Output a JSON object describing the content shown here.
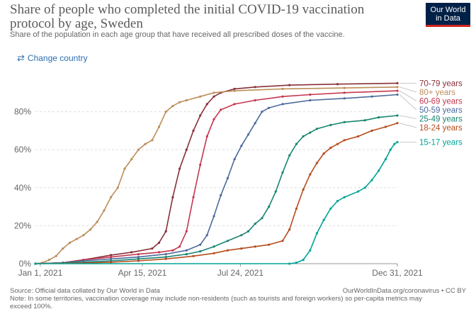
{
  "header": {
    "title": "Share of people who completed the initial COVID-19 vaccination protocol by age, Sweden",
    "subtitle": "Share of the population in each age group that have received all prescribed doses of the vaccine.",
    "logo_line1": "Our World",
    "logo_line2": "in Data"
  },
  "controls": {
    "change_country": "Change country"
  },
  "footer": {
    "source": "Source: Official data collated by Our World in Data",
    "license": "OurWorldInData.org/coronavirus • CC BY",
    "note": "Note: In some territories, vaccination coverage may include non-residents (such as tourists and foreign workers) so per-capita metrics may exceed 100%."
  },
  "chart_data": {
    "type": "line",
    "y_ticks": [
      "0%",
      "20%",
      "40%",
      "60%",
      "80%"
    ],
    "ylim": [
      0,
      100
    ],
    "x_ticks": [
      {
        "label": "Jan 1, 2021",
        "date": "2021-01-01"
      },
      {
        "label": "Apr 15, 2021",
        "date": "2021-04-15"
      },
      {
        "label": "Jul 24, 2021",
        "date": "2021-07-24"
      },
      {
        "label": "Dec 31, 2021",
        "date": "2021-12-31"
      }
    ],
    "xlim": [
      "2020-12-27",
      "2021-12-31"
    ],
    "series": [
      {
        "name": "70-79 years",
        "color": "#883039",
        "points": [
          [
            "2020-12-27",
            0
          ],
          [
            "2021-01-24",
            0.5
          ],
          [
            "2021-02-14",
            2
          ],
          [
            "2021-03-14",
            4.5
          ],
          [
            "2021-04-04",
            6
          ],
          [
            "2021-04-25",
            8
          ],
          [
            "2021-05-02",
            11
          ],
          [
            "2021-05-09",
            17
          ],
          [
            "2021-05-16",
            35
          ],
          [
            "2021-05-23",
            50
          ],
          [
            "2021-05-30",
            60
          ],
          [
            "2021-06-06",
            70
          ],
          [
            "2021-06-13",
            78
          ],
          [
            "2021-06-20",
            84
          ],
          [
            "2021-06-27",
            88
          ],
          [
            "2021-07-04",
            90
          ],
          [
            "2021-07-18",
            92
          ],
          [
            "2021-08-08",
            93
          ],
          [
            "2021-09-12",
            94
          ],
          [
            "2021-10-31",
            94.5
          ],
          [
            "2021-12-31",
            95
          ]
        ]
      },
      {
        "name": "80+ years",
        "color": "#bc8e5a",
        "points": [
          [
            "2020-12-27",
            0
          ],
          [
            "2021-01-03",
            0.5
          ],
          [
            "2021-01-10",
            2
          ],
          [
            "2021-01-17",
            4
          ],
          [
            "2021-01-24",
            8
          ],
          [
            "2021-01-31",
            11
          ],
          [
            "2021-02-07",
            13
          ],
          [
            "2021-02-14",
            15
          ],
          [
            "2021-02-21",
            18
          ],
          [
            "2021-02-28",
            22
          ],
          [
            "2021-03-07",
            28
          ],
          [
            "2021-03-14",
            35
          ],
          [
            "2021-03-21",
            40
          ],
          [
            "2021-03-28",
            50
          ],
          [
            "2021-04-04",
            55
          ],
          [
            "2021-04-11",
            60
          ],
          [
            "2021-04-18",
            63
          ],
          [
            "2021-04-25",
            65
          ],
          [
            "2021-05-02",
            72
          ],
          [
            "2021-05-09",
            80
          ],
          [
            "2021-05-16",
            83
          ],
          [
            "2021-05-23",
            85
          ],
          [
            "2021-05-30",
            86
          ],
          [
            "2021-06-13",
            88
          ],
          [
            "2021-06-27",
            90
          ],
          [
            "2021-07-18",
            91
          ],
          [
            "2021-09-05",
            92
          ],
          [
            "2021-11-07",
            92.5
          ],
          [
            "2021-12-31",
            93
          ]
        ]
      },
      {
        "name": "60-69 years",
        "color": "#c4374f",
        "points": [
          [
            "2020-12-27",
            0
          ],
          [
            "2021-01-24",
            0.5
          ],
          [
            "2021-02-14",
            2
          ],
          [
            "2021-03-14",
            3.5
          ],
          [
            "2021-04-11",
            5
          ],
          [
            "2021-05-02",
            6
          ],
          [
            "2021-05-16",
            7
          ],
          [
            "2021-05-23",
            9
          ],
          [
            "2021-05-30",
            17
          ],
          [
            "2021-06-06",
            35
          ],
          [
            "2021-06-13",
            52
          ],
          [
            "2021-06-20",
            67
          ],
          [
            "2021-06-27",
            76
          ],
          [
            "2021-07-04",
            81
          ],
          [
            "2021-07-18",
            84
          ],
          [
            "2021-08-08",
            86
          ],
          [
            "2021-09-05",
            88
          ],
          [
            "2021-10-03",
            89
          ],
          [
            "2021-11-07",
            90
          ],
          [
            "2021-12-31",
            91
          ]
        ]
      },
      {
        "name": "50-59 years",
        "color": "#4c6a9c",
        "points": [
          [
            "2020-12-27",
            0
          ],
          [
            "2021-01-24",
            0.5
          ],
          [
            "2021-02-14",
            1.5
          ],
          [
            "2021-03-14",
            2.5
          ],
          [
            "2021-04-11",
            3.5
          ],
          [
            "2021-05-09",
            5
          ],
          [
            "2021-05-30",
            7
          ],
          [
            "2021-06-13",
            10
          ],
          [
            "2021-06-20",
            15
          ],
          [
            "2021-06-27",
            25
          ],
          [
            "2021-07-04",
            36
          ],
          [
            "2021-07-11",
            45
          ],
          [
            "2021-07-18",
            55
          ],
          [
            "2021-07-25",
            62
          ],
          [
            "2021-08-01",
            68
          ],
          [
            "2021-08-08",
            74
          ],
          [
            "2021-08-15",
            80
          ],
          [
            "2021-08-22",
            82
          ],
          [
            "2021-09-05",
            84
          ],
          [
            "2021-10-03",
            86
          ],
          [
            "2021-11-07",
            87
          ],
          [
            "2021-12-05",
            88
          ],
          [
            "2021-12-31",
            89
          ]
        ]
      },
      {
        "name": "25-49 years",
        "color": "#18856f",
        "points": [
          [
            "2020-12-27",
            0
          ],
          [
            "2021-01-24",
            0.3
          ],
          [
            "2021-02-14",
            0.8
          ],
          [
            "2021-03-14",
            1.5
          ],
          [
            "2021-04-11",
            2.5
          ],
          [
            "2021-05-09",
            3.5
          ],
          [
            "2021-05-30",
            5
          ],
          [
            "2021-06-13",
            6.5
          ],
          [
            "2021-06-27",
            9
          ],
          [
            "2021-07-11",
            12
          ],
          [
            "2021-07-25",
            15
          ],
          [
            "2021-08-01",
            17
          ],
          [
            "2021-08-08",
            21
          ],
          [
            "2021-08-15",
            24
          ],
          [
            "2021-08-22",
            30
          ],
          [
            "2021-08-29",
            38
          ],
          [
            "2021-09-05",
            48
          ],
          [
            "2021-09-12",
            57
          ],
          [
            "2021-09-19",
            63
          ],
          [
            "2021-09-26",
            67
          ],
          [
            "2021-10-03",
            69
          ],
          [
            "2021-10-10",
            71
          ],
          [
            "2021-10-24",
            73
          ],
          [
            "2021-11-07",
            74.5
          ],
          [
            "2021-11-28",
            75.5
          ],
          [
            "2021-12-12",
            77
          ],
          [
            "2021-12-31",
            78
          ]
        ]
      },
      {
        "name": "18-24 years",
        "color": "#b64d1d",
        "points": [
          [
            "2020-12-27",
            0
          ],
          [
            "2021-02-14",
            0.3
          ],
          [
            "2021-03-14",
            0.8
          ],
          [
            "2021-04-11",
            1.5
          ],
          [
            "2021-05-09",
            2.5
          ],
          [
            "2021-06-06",
            4
          ],
          [
            "2021-06-27",
            5.5
          ],
          [
            "2021-07-11",
            7
          ],
          [
            "2021-07-25",
            8
          ],
          [
            "2021-08-08",
            9
          ],
          [
            "2021-08-22",
            10
          ],
          [
            "2021-09-05",
            12
          ],
          [
            "2021-09-12",
            18
          ],
          [
            "2021-09-19",
            29
          ],
          [
            "2021-09-26",
            39
          ],
          [
            "2021-10-03",
            47
          ],
          [
            "2021-10-10",
            53
          ],
          [
            "2021-10-17",
            58
          ],
          [
            "2021-10-24",
            61
          ],
          [
            "2021-10-31",
            63
          ],
          [
            "2021-11-07",
            65
          ],
          [
            "2021-11-21",
            67
          ],
          [
            "2021-12-05",
            70
          ],
          [
            "2021-12-19",
            72
          ],
          [
            "2021-12-31",
            74
          ]
        ]
      },
      {
        "name": "15-17 years",
        "color": "#00a497",
        "points": [
          [
            "2020-12-27",
            0
          ],
          [
            "2021-09-12",
            0
          ],
          [
            "2021-09-19",
            0.5
          ],
          [
            "2021-09-26",
            2
          ],
          [
            "2021-10-03",
            7
          ],
          [
            "2021-10-10",
            16
          ],
          [
            "2021-10-17",
            23
          ],
          [
            "2021-10-24",
            29
          ],
          [
            "2021-10-31",
            33
          ],
          [
            "2021-11-07",
            35
          ],
          [
            "2021-11-21",
            38
          ],
          [
            "2021-11-28",
            40
          ],
          [
            "2021-12-05",
            44
          ],
          [
            "2021-12-12",
            49
          ],
          [
            "2021-12-19",
            55
          ],
          [
            "2021-12-24",
            60
          ],
          [
            "2021-12-28",
            63
          ],
          [
            "2021-12-31",
            64
          ]
        ]
      }
    ]
  }
}
